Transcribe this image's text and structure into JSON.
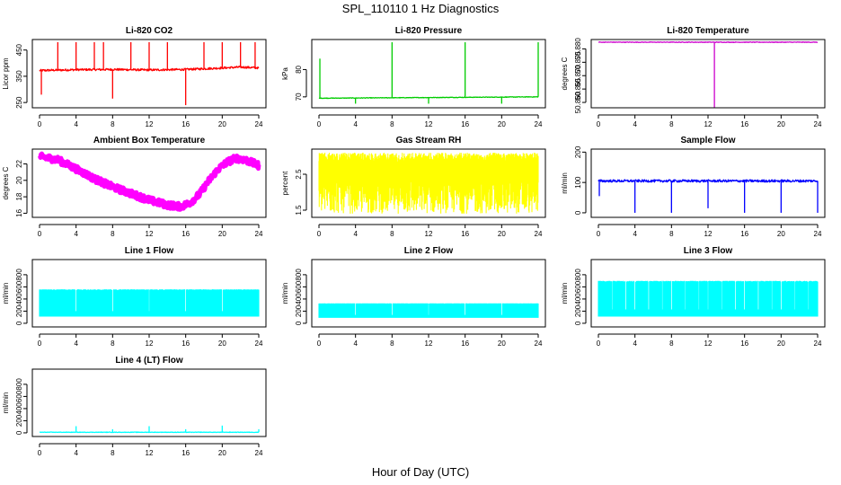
{
  "figure": {
    "title": "SPL_110110  1 Hz Diagnostics",
    "xlabel": "Hour of Day (UTC)"
  },
  "chart_data": [
    {
      "type": "line",
      "title": "Li-820 CO2",
      "ylabel": "Licor ppm",
      "color": "#ff0000",
      "xlim": [
        0,
        24
      ],
      "ylim": [
        230,
        490
      ],
      "x_ticks": [
        "0",
        "4",
        "8",
        "12",
        "16",
        "20",
        "24"
      ],
      "y_ticks": [
        250,
        350,
        450
      ],
      "baseline": [
        [
          0,
          372
        ],
        [
          4,
          375
        ],
        [
          8,
          376
        ],
        [
          12,
          374
        ],
        [
          16,
          376
        ],
        [
          19,
          380
        ],
        [
          22,
          385
        ],
        [
          24,
          382
        ]
      ],
      "noise": 4,
      "spikes": [
        [
          0.2,
          280
        ],
        [
          2,
          480
        ],
        [
          4,
          480
        ],
        [
          6,
          480
        ],
        [
          7,
          480
        ],
        [
          8,
          265
        ],
        [
          10,
          480
        ],
        [
          12,
          480
        ],
        [
          14,
          480
        ],
        [
          16,
          240
        ],
        [
          18,
          480
        ],
        [
          20,
          480
        ],
        [
          22,
          480
        ],
        [
          23.6,
          480
        ]
      ]
    },
    {
      "type": "line",
      "title": "Li-820 Pressure",
      "ylabel": "kPa",
      "color": "#00cc00",
      "xlim": [
        0,
        24
      ],
      "ylim": [
        66,
        91
      ],
      "x_ticks": [
        "0",
        "4",
        "8",
        "12",
        "16",
        "20",
        "24"
      ],
      "y_ticks": [
        70,
        80
      ],
      "baseline": [
        [
          0,
          69.5
        ],
        [
          24,
          70.0
        ]
      ],
      "noise": 0.1,
      "spikes": [
        [
          0.1,
          84
        ],
        [
          4,
          67.5
        ],
        [
          8,
          90
        ],
        [
          12,
          67.5
        ],
        [
          16,
          90
        ],
        [
          20,
          67.5
        ],
        [
          24,
          90
        ]
      ]
    },
    {
      "type": "line",
      "title": "Li-820 Temperature",
      "ylabel": "degrees C",
      "color": "#cc00cc",
      "xlim": [
        0,
        24
      ],
      "ylim": [
        50.858,
        50.8835
      ],
      "x_ticks": [
        "0",
        "4",
        "8",
        "12",
        "16",
        "20",
        "24"
      ],
      "y_ticks": [
        50.86,
        50.865,
        50.87,
        50.875,
        50.88
      ],
      "y_tick_labels": [
        "50.860",
        "50.865",
        "50.870",
        "50.875",
        "50.880"
      ],
      "baseline": [
        [
          0,
          50.8825
        ],
        [
          24,
          50.8825
        ]
      ],
      "noise": 0.0001,
      "spikes": [
        [
          12.7,
          50.858
        ]
      ]
    },
    {
      "type": "line",
      "title": "Ambient Box Temperature",
      "ylabel": "degrees C",
      "color": "#ff00ff",
      "xlim": [
        0,
        24
      ],
      "ylim": [
        15.5,
        23.8
      ],
      "x_ticks": [
        "0",
        "4",
        "8",
        "12",
        "16",
        "20",
        "24"
      ],
      "y_ticks": [
        16,
        18,
        20,
        22
      ],
      "baseline": [
        [
          0,
          22.9
        ],
        [
          2,
          22.5
        ],
        [
          4,
          21.4
        ],
        [
          6,
          20.2
        ],
        [
          8,
          19.2
        ],
        [
          10,
          18.4
        ],
        [
          12,
          17.6
        ],
        [
          14,
          17.0
        ],
        [
          15.5,
          16.8
        ],
        [
          16.5,
          17.3
        ],
        [
          17.5,
          18.3
        ],
        [
          18.5,
          19.9
        ],
        [
          19.5,
          21.3
        ],
        [
          20.5,
          22.2
        ],
        [
          21.5,
          22.7
        ],
        [
          22.5,
          22.5
        ],
        [
          24,
          21.8
        ]
      ],
      "noise": 0.4,
      "spikes": []
    },
    {
      "type": "line",
      "title": "Gas Stream RH",
      "ylabel": "percent",
      "color": "#ffff00",
      "xlim": [
        0,
        24
      ],
      "ylim": [
        1.3,
        3.2
      ],
      "x_ticks": [
        "0",
        "4",
        "8",
        "12",
        "16",
        "20",
        "24"
      ],
      "y_ticks": [
        1.5,
        2.5
      ],
      "band": [
        1.4,
        3.1
      ],
      "noise": 0,
      "spikes": []
    },
    {
      "type": "line",
      "title": "Sample Flow",
      "ylabel": "ml/min",
      "color": "#0000ff",
      "xlim": [
        0,
        24
      ],
      "ylim": [
        -15,
        210
      ],
      "x_ticks": [
        "0",
        "4",
        "8",
        "12",
        "16",
        "20",
        "24"
      ],
      "y_ticks": [
        0,
        100,
        200
      ],
      "baseline": [
        [
          0,
          105
        ],
        [
          24,
          105
        ]
      ],
      "noise": 4,
      "spikes": [
        [
          0.1,
          55
        ],
        [
          4,
          0
        ],
        [
          8,
          0
        ],
        [
          12,
          15
        ],
        [
          16,
          0
        ],
        [
          20,
          0
        ],
        [
          24,
          0
        ]
      ]
    },
    {
      "type": "line",
      "title": "Line 1 Flow",
      "ylabel": "ml/min",
      "color": "#00ffff",
      "xlim": [
        0,
        24
      ],
      "ylim": [
        -60,
        1050
      ],
      "x_ticks": [
        "0",
        "4",
        "8",
        "12",
        "16",
        "20",
        "24"
      ],
      "y_ticks": [
        0,
        200,
        400,
        600,
        800
      ],
      "band": [
        110,
        560
      ],
      "gaps": [
        4,
        8,
        12,
        16,
        20
      ],
      "noise": 0,
      "spikes": []
    },
    {
      "type": "line",
      "title": "Line 2 Flow",
      "ylabel": "ml/min",
      "color": "#00ffff",
      "xlim": [
        0,
        24
      ],
      "ylim": [
        -60,
        1050
      ],
      "x_ticks": [
        "0",
        "4",
        "8",
        "12",
        "16",
        "20",
        "24"
      ],
      "y_ticks": [
        0,
        200,
        400,
        600,
        800
      ],
      "band": [
        90,
        330
      ],
      "gaps": [
        4,
        8,
        12,
        16,
        20
      ],
      "noise": 0,
      "spikes": []
    },
    {
      "type": "line",
      "title": "Line 3 Flow",
      "ylabel": "ml/min",
      "color": "#00ffff",
      "xlim": [
        0,
        24
      ],
      "ylim": [
        -60,
        1050
      ],
      "x_ticks": [
        "0",
        "4",
        "8",
        "12",
        "16",
        "20",
        "24"
      ],
      "y_ticks": [
        0,
        200,
        400,
        600,
        800
      ],
      "band": [
        110,
        700
      ],
      "gaps": [
        1.5,
        3,
        4,
        5.5,
        7,
        8,
        9.5,
        11,
        12,
        13.5,
        15,
        16,
        17.5,
        19,
        20,
        21.5,
        23
      ],
      "noise": 0,
      "spikes": []
    },
    {
      "type": "line",
      "title": "Line 4 (LT) Flow",
      "ylabel": "ml/min",
      "color": "#00ffff",
      "xlim": [
        0,
        24
      ],
      "ylim": [
        -60,
        1050
      ],
      "x_ticks": [
        "0",
        "4",
        "8",
        "12",
        "16",
        "20",
        "24"
      ],
      "y_ticks": [
        0,
        200,
        400,
        600,
        800
      ],
      "baseline": [
        [
          0,
          10
        ],
        [
          24,
          10
        ]
      ],
      "noise": 4,
      "spikes": [
        [
          4,
          110
        ],
        [
          8,
          60
        ],
        [
          12,
          110
        ],
        [
          16,
          60
        ],
        [
          20,
          120
        ],
        [
          24,
          60
        ]
      ]
    }
  ]
}
